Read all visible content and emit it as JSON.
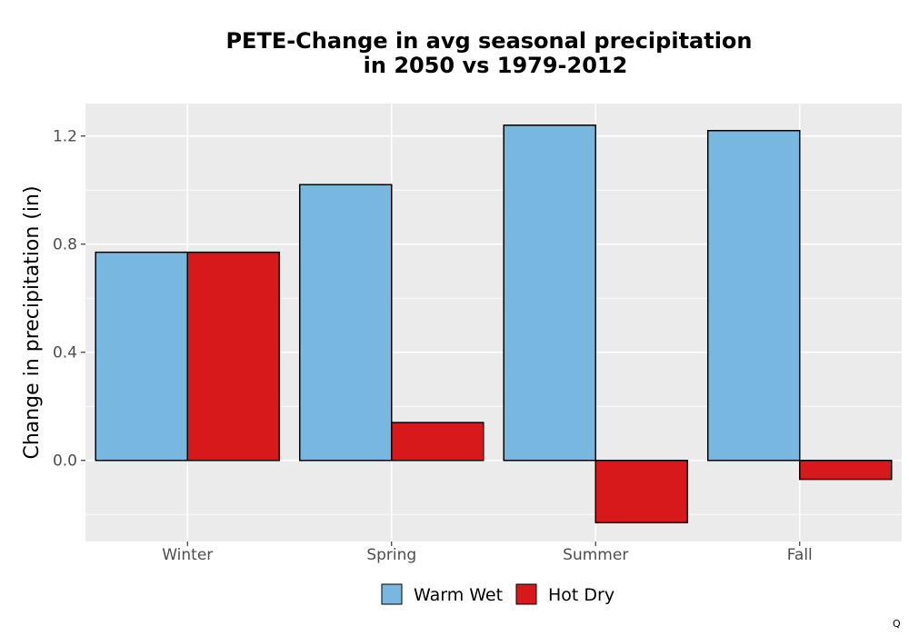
{
  "chart_data": {
    "type": "bar",
    "title_lines": [
      "PETE-Change in avg seasonal precipitation",
      "in 2050 vs 1979-2012"
    ],
    "xlabel": "",
    "ylabel": "Change in precipitation (in)",
    "categories": [
      "Winter",
      "Spring",
      "Summer",
      "Fall"
    ],
    "series": [
      {
        "name": "Warm Wet",
        "color": "#77b7e0",
        "values": [
          0.77,
          1.02,
          1.24,
          1.22
        ]
      },
      {
        "name": "Hot Dry",
        "color": "#d7191c",
        "values": [
          0.77,
          0.14,
          -0.23,
          -0.07
        ]
      }
    ],
    "ylim": [
      -0.3,
      1.32
    ],
    "yticks": [
      0.0,
      0.4,
      0.8,
      1.2
    ],
    "ytick_labels": [
      "0.0",
      "0.4",
      "0.8",
      "1.2"
    ],
    "grid": true,
    "panel_background": "#ebebeb",
    "bar_outline": "#000000",
    "legend_position": "bottom"
  },
  "corner_mark": "Q"
}
